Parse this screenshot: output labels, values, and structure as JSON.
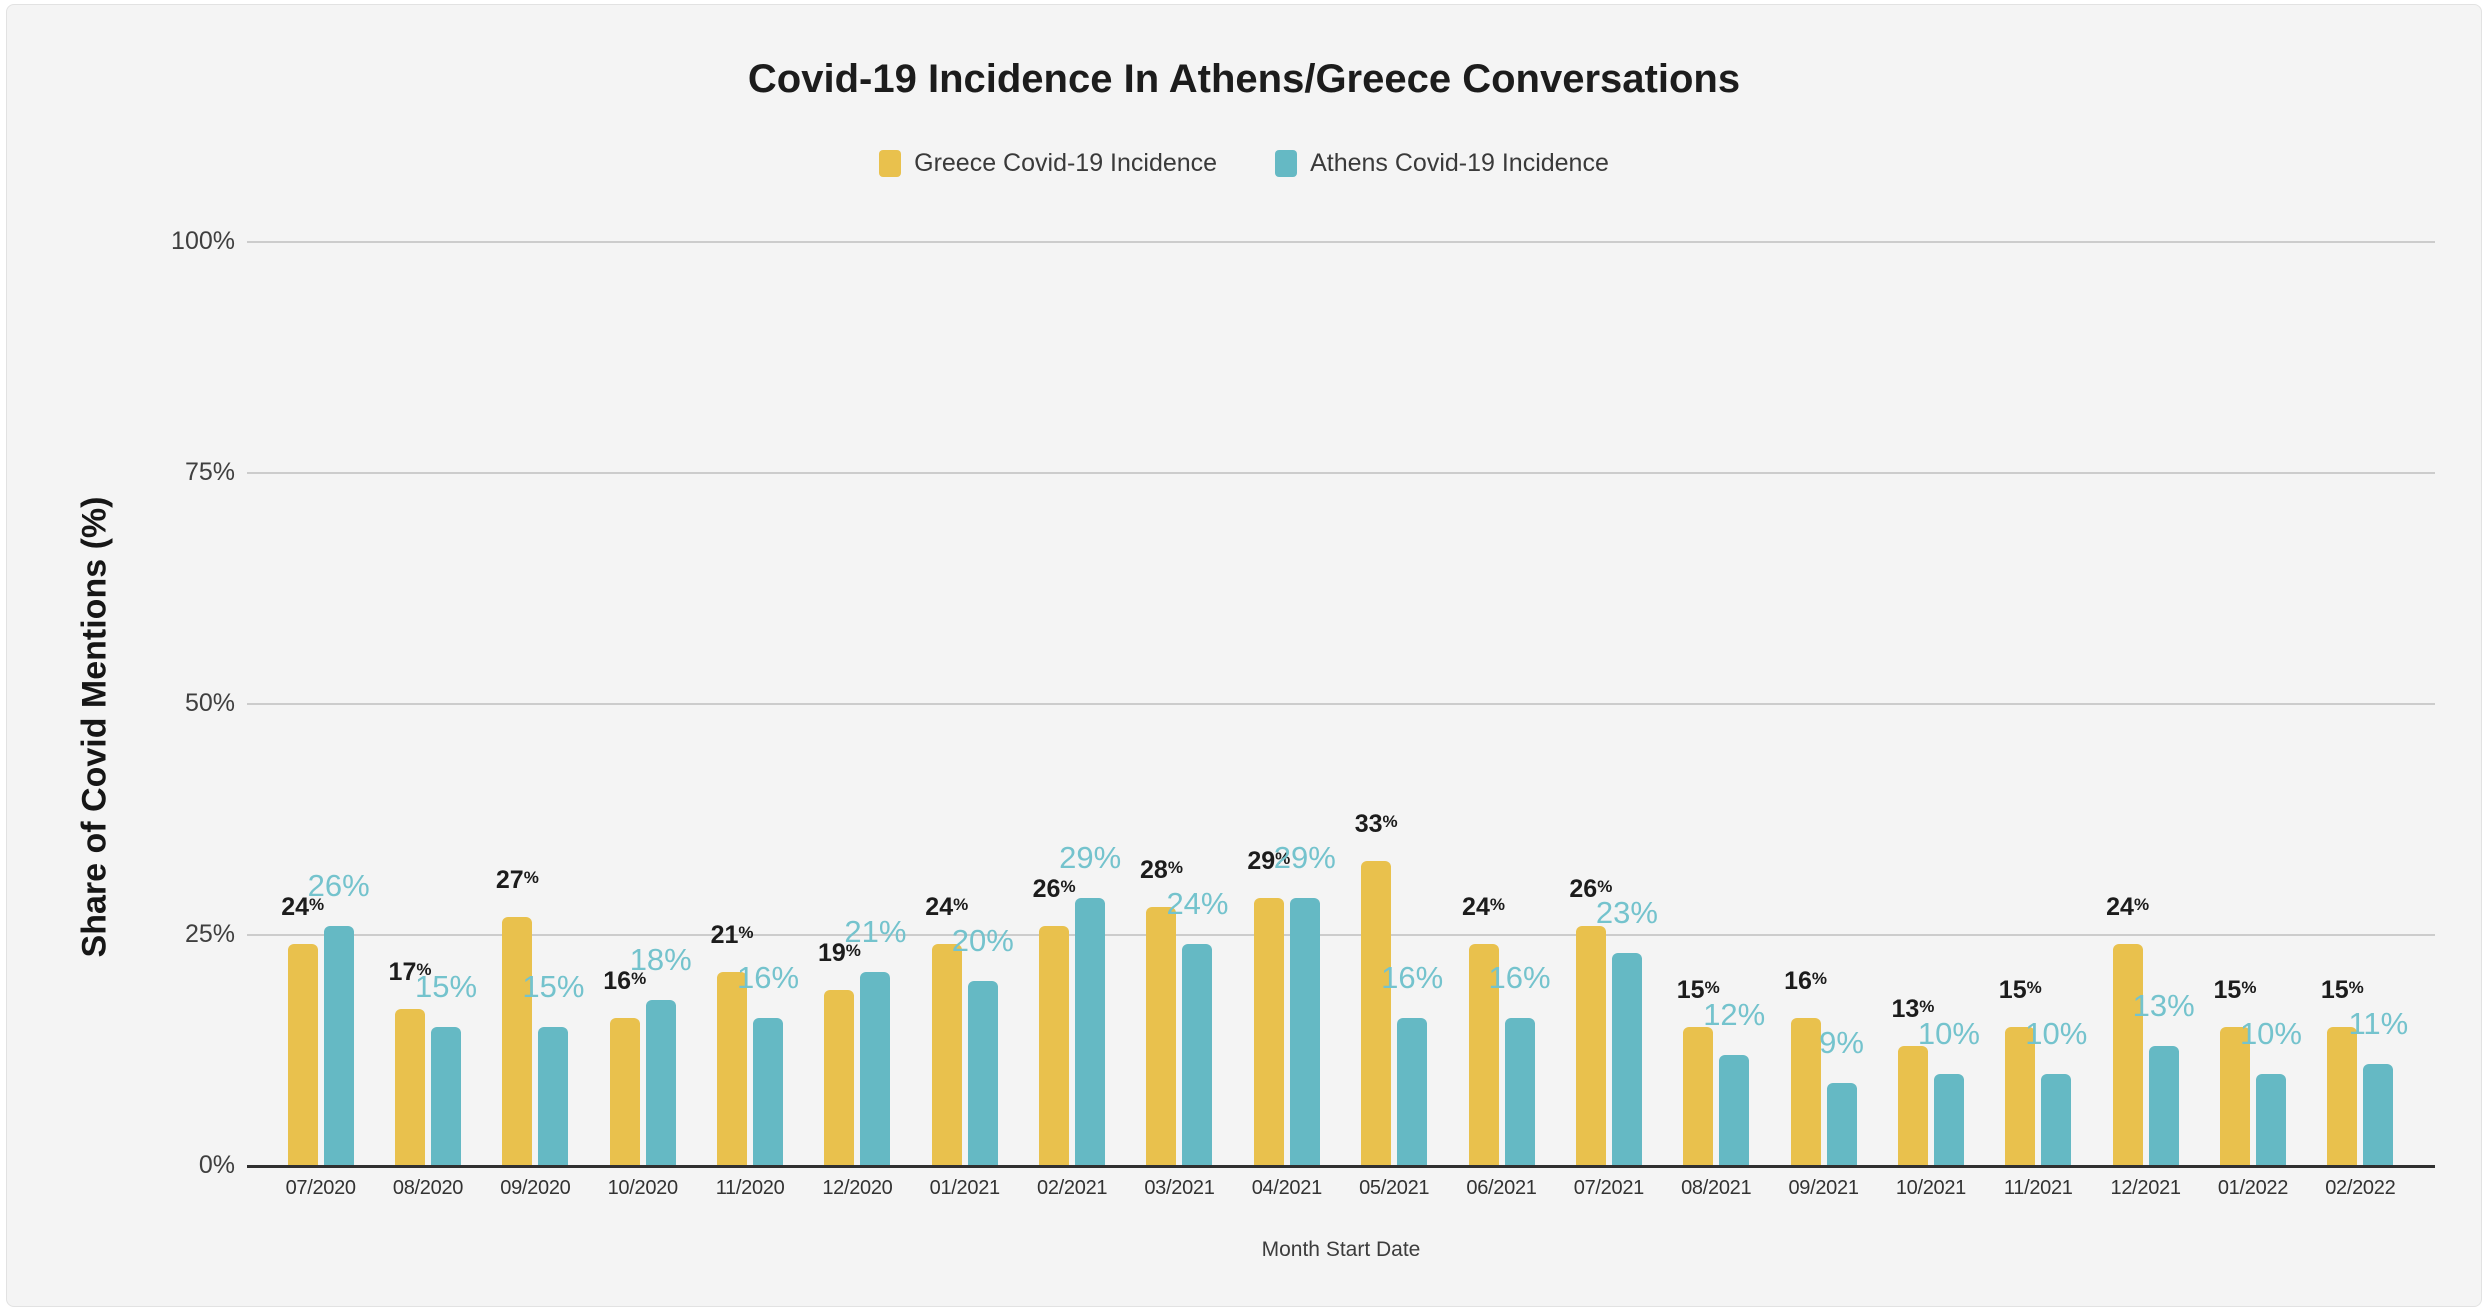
{
  "title": "Covid-19 Incidence In Athens/Greece Conversations",
  "legend": {
    "items": [
      {
        "label": "Greece Covid-19 Incidence",
        "color": "#e9c14d"
      },
      {
        "label": "Athens Covid-19 Incidence",
        "color": "#65b9c4"
      }
    ]
  },
  "axes": {
    "x_title": "Month Start Date",
    "y_title": "Share of Covid Mentions (%)"
  },
  "colors": {
    "background": "#f4f4f4",
    "gridline": "#cccccc",
    "axis_line": "#303030",
    "greece_bar": "#e9c14d",
    "athens_bar": "#65b9c4",
    "greece_label_text": "#1c1c1c",
    "athens_label_text": "#74c3cd"
  },
  "chart_data": {
    "type": "bar",
    "title": "Covid-19 Incidence In Athens/Greece Conversations",
    "xlabel": "Month Start Date",
    "ylabel": "Share of Covid Mentions (%)",
    "ylim": [
      0,
      100
    ],
    "yticks": [
      0,
      25,
      50,
      75,
      100
    ],
    "ytick_labels": [
      "0%",
      "25%",
      "50%",
      "75%",
      "100%"
    ],
    "grid": true,
    "legend_position": "top",
    "value_suffix": "%",
    "categories": [
      "07/2020",
      "08/2020",
      "09/2020",
      "10/2020",
      "11/2020",
      "12/2020",
      "01/2021",
      "02/2021",
      "03/2021",
      "04/2021",
      "05/2021",
      "06/2021",
      "07/2021",
      "08/2021",
      "09/2021",
      "10/2021",
      "11/2021",
      "12/2021",
      "01/2022",
      "02/2022"
    ],
    "series": [
      {
        "name": "Greece Covid-19 Incidence",
        "color": "#e9c14d",
        "label_color": "#1c1c1c",
        "values": [
          24,
          17,
          27,
          16,
          21,
          19,
          24,
          26,
          28,
          29,
          33,
          24,
          26,
          15,
          16,
          13,
          15,
          24,
          15,
          15
        ]
      },
      {
        "name": "Athens Covid-19 Incidence",
        "color": "#65b9c4",
        "label_color": "#74c3cd",
        "values": [
          26,
          15,
          15,
          18,
          16,
          21,
          20,
          29,
          24,
          29,
          16,
          16,
          23,
          12,
          9,
          10,
          10,
          13,
          10,
          11
        ]
      }
    ]
  }
}
